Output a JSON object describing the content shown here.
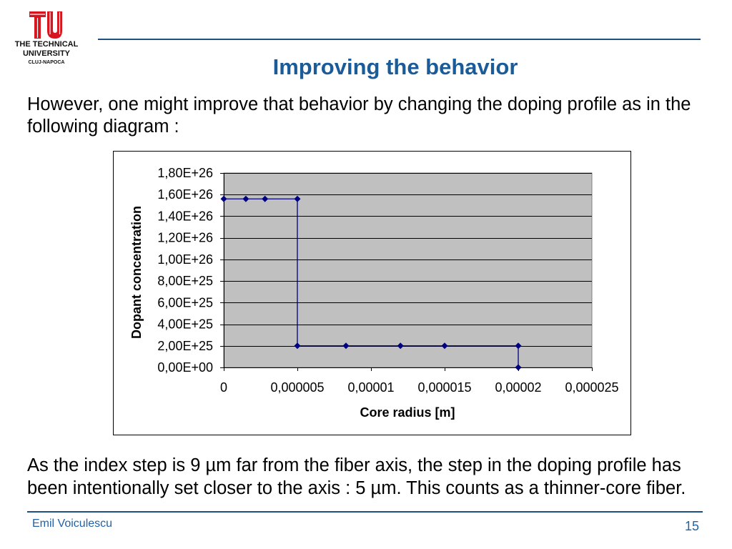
{
  "logo": {
    "icon": "university-logo",
    "line1": "THE TECHNICAL",
    "line2": "UNIVERSITY",
    "line3": "CLUJ-NAPOCA",
    "color": "#d7151f"
  },
  "slide": {
    "title": "Improving the behavior",
    "intro_lines": [
      "However, one might improve that behavior by changing the doping profile as in the",
      "following diagram :"
    ],
    "conclusion_lines": [
      "As the index step is 9 µm far from the fiber axis, the step in the doping profile has",
      "been intentionally set closer to the axis : 5 µm. This counts as a thinner-core fiber."
    ],
    "page_number": "15"
  },
  "footer": {
    "author": "Emil Voiculescu"
  },
  "colors": {
    "title": "#1b5c98",
    "rule": "#1f4f7f",
    "footer_text": "#2462a6"
  },
  "chart_data": {
    "type": "line",
    "xlabel": "Core radius [m]",
    "ylabel": "Dopant concentration",
    "xlim": [
      0,
      2.5e-05
    ],
    "ylim": [
      0,
      1.8e+26
    ],
    "x_tick_values": [
      0,
      5e-06,
      1e-05,
      1.5e-05,
      2e-05,
      2.5e-05
    ],
    "x_tick_labels": [
      "0",
      "0,000005",
      "0,00001",
      "0,000015",
      "0,00002",
      "0,000025"
    ],
    "y_tick_values": [
      0,
      2e+25,
      4e+25,
      6e+25,
      8e+25,
      1e+26,
      1.2e+26,
      1.4e+26,
      1.6e+26,
      1.8e+26
    ],
    "y_tick_labels": [
      "0,00E+00",
      "2,00E+25",
      "4,00E+25",
      "6,00E+25",
      "8,00E+25",
      "1,00E+26",
      "1,20E+26",
      "1,40E+26",
      "1,60E+26",
      "1,80E+26"
    ],
    "grid": "horizontal",
    "legend": "none",
    "plot_background": "#c0c0c0",
    "series": [
      {
        "x": [
          0,
          1.5e-06,
          2.8e-06,
          5e-06,
          5e-06,
          8.3e-06,
          1.2e-05,
          1.5e-05,
          2e-05,
          2e-05
        ],
        "y": [
          1.56e+26,
          1.56e+26,
          1.56e+26,
          1.56e+26,
          2e+25,
          2e+25,
          2e+25,
          2e+25,
          2e+25,
          0
        ],
        "marker": "diamond",
        "color": "#000080"
      }
    ]
  }
}
